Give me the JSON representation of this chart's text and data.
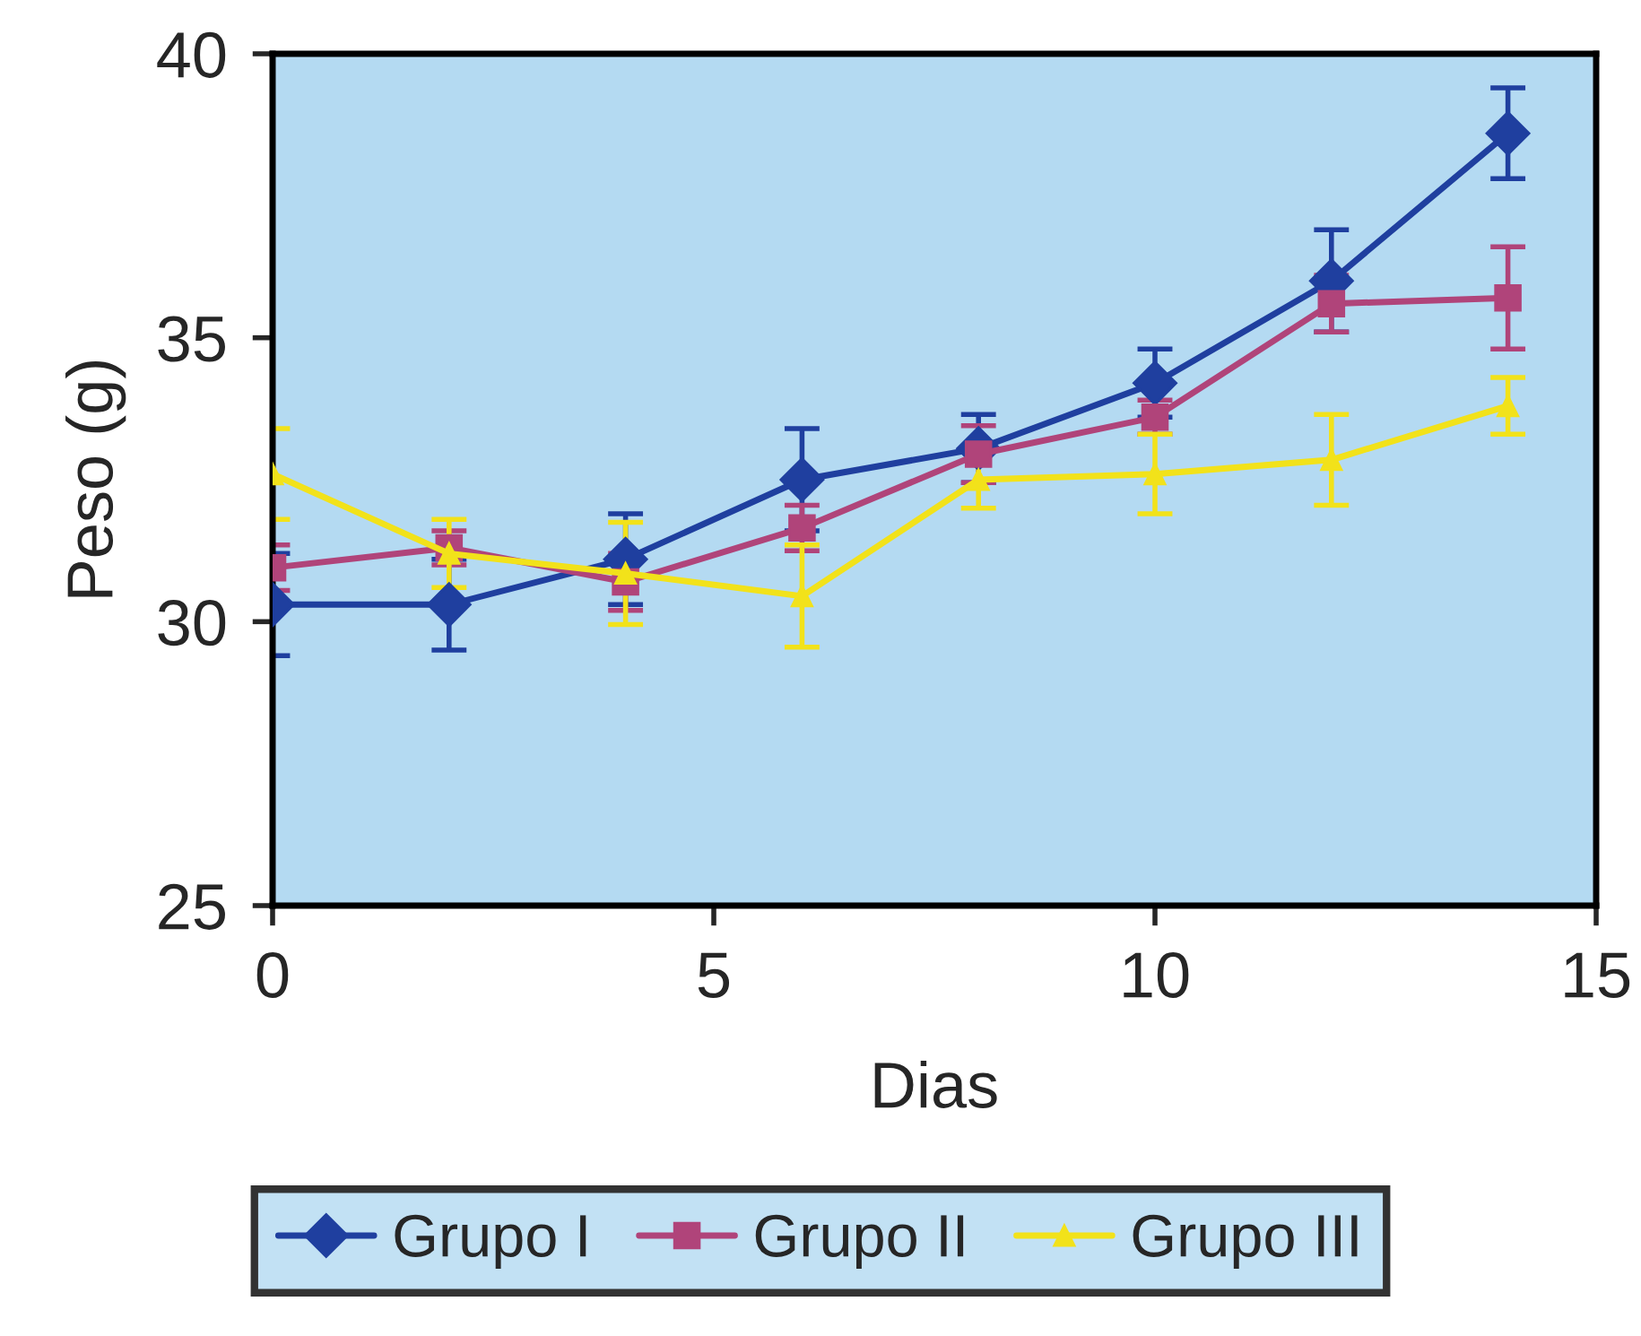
{
  "chart_data": {
    "type": "line",
    "xlabel": "Dias",
    "ylabel": "Peso (g)",
    "xlim": [
      0,
      15
    ],
    "xticks": [
      0,
      5,
      10,
      15
    ],
    "ylim": [
      25,
      40
    ],
    "yticks": [
      25,
      30,
      35,
      40
    ],
    "x": [
      0,
      2,
      4,
      6,
      8,
      10,
      12,
      14
    ],
    "grid": false,
    "legend": "bottom",
    "line_style": "solid",
    "series": [
      {
        "name": "Grupo I",
        "color": "#1f3f9f",
        "marker": "diamond",
        "values": [
          30.3,
          30.3,
          31.1,
          32.5,
          33.05,
          34.2,
          36.0,
          38.6
        ],
        "errors": [
          0.9,
          0.8,
          0.8,
          0.9,
          0.6,
          0.6,
          0.9,
          0.8
        ]
      },
      {
        "name": "Grupo II",
        "color": "#b0447a",
        "marker": "square",
        "values": [
          30.95,
          31.3,
          30.7,
          31.65,
          32.95,
          33.6,
          35.6,
          35.7
        ],
        "errors": [
          0.4,
          0.3,
          0.5,
          0.4,
          0.5,
          0.3,
          0.5,
          0.9
        ]
      },
      {
        "name": "Grupo III",
        "color": "#f2e21a",
        "marker": "triangle",
        "values": [
          32.6,
          31.2,
          30.85,
          30.45,
          32.5,
          32.6,
          32.85,
          33.8
        ],
        "errors": [
          0.8,
          0.6,
          0.9,
          0.9,
          0.5,
          0.7,
          0.8,
          0.5
        ]
      }
    ]
  }
}
